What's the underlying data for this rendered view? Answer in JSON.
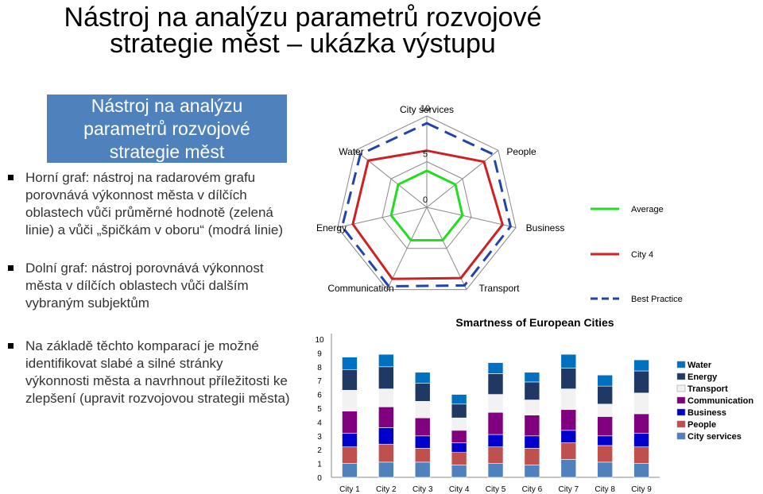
{
  "title": {
    "line1": "Nástroj na analýzu parametrů rozvojové",
    "line2": "strategie měst – ukázka výstupu"
  },
  "box": {
    "line1": "Nástroj na analýzu",
    "line2": "parametrů rozvojové",
    "line3": "strategie měst"
  },
  "bullets": [
    "Horní graf: nástroj na radarovém grafu porovnává výkonnost města v dílčích oblastech vůči průměrné hodnotě (zelená linie) a vůči „špičkám v oboru“ (modrá linie)",
    "Dolní graf: nástroj porovnává výkonnost města v dílčích oblastech vůči dalším vybraným subjektům",
    "Na základě těchto komparací je možné identifikovat slabé a silné stránky výkonnosti města a navrhnout příležitosti ke zlepšení (upravit rozvojovou strategii města)"
  ],
  "chart_data": [
    {
      "type": "radar",
      "axes": [
        "City services",
        "People",
        "Business",
        "Transport",
        "Communication",
        "Energy",
        "Water"
      ],
      "ticks": [
        "10",
        "5",
        "0"
      ],
      "rmax": 10,
      "series": [
        {
          "name": "Average",
          "color": "#22dd22",
          "values": [
            4,
            4,
            4,
            4,
            4,
            4,
            4
          ]
        },
        {
          "name": "City 4",
          "color": "#cc2222",
          "values": [
            6.2,
            8,
            8.5,
            8.6,
            8.7,
            8.3,
            8.2
          ]
        },
        {
          "name": "Best Practice",
          "color": "#2244aa",
          "values": [
            9.2,
            9.3,
            9.4,
            9.5,
            9.6,
            9.5,
            9.3
          ]
        }
      ]
    },
    {
      "type": "bar",
      "stacked": true,
      "title": "Smartness of European Cities",
      "categories": [
        "City 1",
        "City 2",
        "City 3",
        "City 4",
        "City 5",
        "City 6",
        "City 7",
        "City 8",
        "City 9"
      ],
      "ylim": [
        0,
        10
      ],
      "yticks": [
        "0",
        "1",
        "2",
        "3",
        "4",
        "5",
        "6",
        "7",
        "8",
        "9",
        "10"
      ],
      "legend": "right",
      "series": [
        {
          "name": "City services",
          "color": "#4f81bd",
          "values": [
            1.0,
            1.1,
            1.1,
            0.9,
            1.0,
            0.9,
            1.3,
            1.1,
            1.0
          ]
        },
        {
          "name": "People",
          "color": "#c0504d",
          "values": [
            1.2,
            1.3,
            1.0,
            0.9,
            1.2,
            1.2,
            1.2,
            1.2,
            1.2
          ]
        },
        {
          "name": "Business",
          "color": "#0000cc",
          "values": [
            1.0,
            1.2,
            0.9,
            0.7,
            0.9,
            0.9,
            0.9,
            0.7,
            1.0
          ]
        },
        {
          "name": "Communication",
          "color": "#800080",
          "values": [
            1.6,
            1.5,
            1.3,
            0.9,
            1.6,
            1.5,
            1.5,
            1.4,
            1.4
          ]
        },
        {
          "name": "Transport",
          "color": "#f2f2f2",
          "values": [
            1.5,
            1.3,
            1.2,
            0.9,
            1.3,
            1.1,
            1.5,
            0.9,
            1.5
          ]
        },
        {
          "name": "Energy",
          "color": "#1f3864",
          "values": [
            1.5,
            1.6,
            1.3,
            1.0,
            1.5,
            1.3,
            1.5,
            1.3,
            1.6
          ]
        },
        {
          "name": "Water",
          "color": "#0070c0",
          "values": [
            0.9,
            0.9,
            0.8,
            0.7,
            0.8,
            0.7,
            1.0,
            0.8,
            0.8
          ]
        }
      ],
      "legend_order": [
        "Water",
        "Energy",
        "Transport",
        "Communication",
        "Business",
        "People",
        "City services"
      ]
    }
  ]
}
